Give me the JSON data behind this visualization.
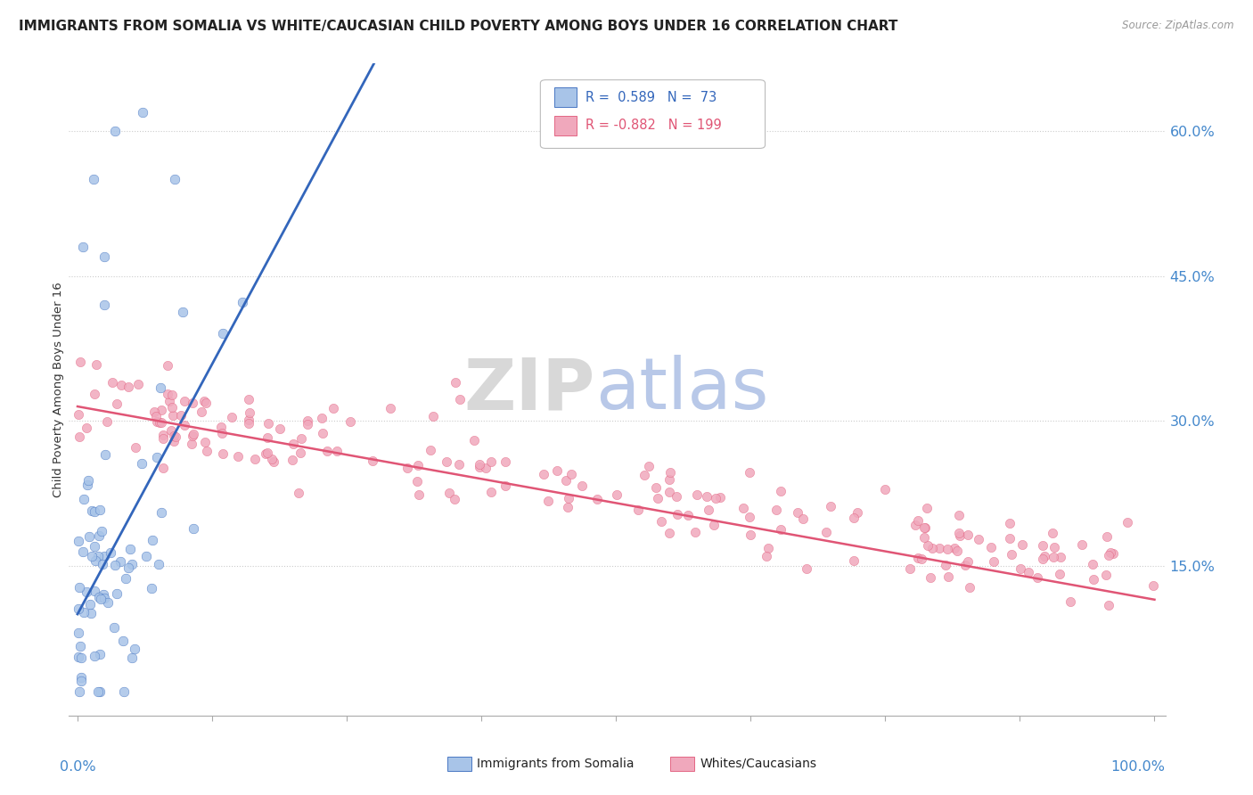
{
  "title": "IMMIGRANTS FROM SOMALIA VS WHITE/CAUCASIAN CHILD POVERTY AMONG BOYS UNDER 16 CORRELATION CHART",
  "source": "Source: ZipAtlas.com",
  "ylabel": "Child Poverty Among Boys Under 16",
  "ytick_labels": [
    "15.0%",
    "30.0%",
    "45.0%",
    "60.0%"
  ],
  "ytick_values": [
    0.15,
    0.3,
    0.45,
    0.6
  ],
  "color_somalia": "#a8c4e8",
  "color_white": "#f0a8bc",
  "line_color_somalia": "#3366bb",
  "line_color_white": "#e05575",
  "watermark_zip_color": "#d8d8d8",
  "watermark_atlas_color": "#b8c8e8",
  "ylim_max": 0.67,
  "xlim_max": 1.01
}
